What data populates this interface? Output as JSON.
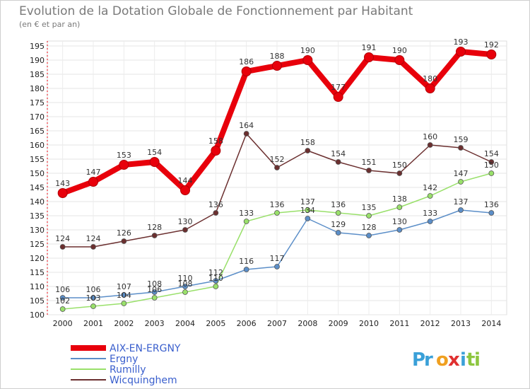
{
  "title": "Evolution de la Dotation Globale de Fonctionnement par Habitant",
  "subtitle": "(en € et par an)",
  "logo": {
    "letters": [
      {
        "ch": "P",
        "color": "#3aa0d8"
      },
      {
        "ch": "r",
        "color": "#3aa0d8"
      },
      {
        "ch": "o",
        "color": "#f0a020"
      },
      {
        "ch": "x",
        "color": "#e03030"
      },
      {
        "ch": "i",
        "color": "#3aa0d8"
      },
      {
        "ch": "t",
        "color": "#8dc63f"
      },
      {
        "ch": "i",
        "color": "#8dc63f"
      }
    ]
  },
  "chart_data": {
    "type": "line",
    "x": [
      "2000",
      "2001",
      "2002",
      "2003",
      "2004",
      "2005",
      "2006",
      "2007",
      "2008",
      "2009",
      "2010",
      "2011",
      "2012",
      "2013",
      "2014"
    ],
    "ylim": [
      100,
      195
    ],
    "yticks": [
      100,
      105,
      110,
      115,
      120,
      125,
      130,
      135,
      140,
      145,
      150,
      155,
      160,
      165,
      170,
      175,
      180,
      185,
      190,
      195
    ],
    "grid": true,
    "legend_position": "bottom-left",
    "series": [
      {
        "name": "AIX-EN-ERGNY",
        "color": "#e8000b",
        "values": [
          143,
          147,
          153,
          154,
          144,
          158,
          186,
          188,
          190,
          177,
          191,
          190,
          180,
          193,
          192
        ]
      },
      {
        "name": "Ergny",
        "color": "#5b8ec8",
        "values": [
          106,
          106,
          107,
          108,
          110,
          112,
          116,
          117,
          134,
          129,
          128,
          130,
          133,
          137,
          136
        ]
      },
      {
        "name": "Rumilly",
        "color": "#99e06a",
        "values": [
          102,
          103,
          104,
          106,
          108,
          110,
          133,
          136,
          137,
          136,
          135,
          138,
          142,
          147,
          150
        ]
      },
      {
        "name": "Wicquinghem",
        "color": "#6b2f2f",
        "values": [
          124,
          124,
          126,
          128,
          130,
          136,
          164,
          152,
          158,
          154,
          151,
          150,
          160,
          159,
          154
        ]
      }
    ]
  }
}
